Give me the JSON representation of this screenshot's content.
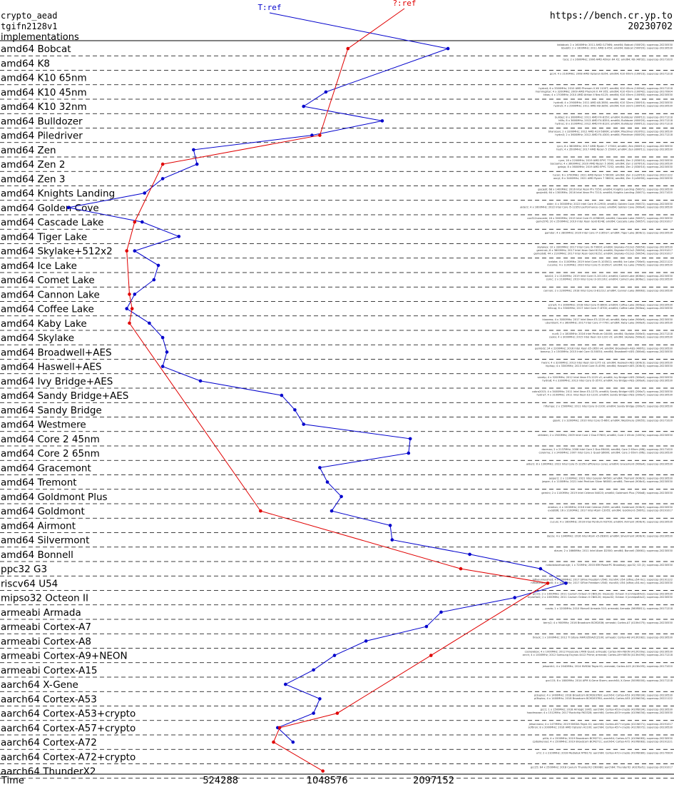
{
  "header": {
    "line1": "crypto_aead",
    "line2": "tgifn2128v1",
    "line3": "implementations",
    "url": "https://bench.cr.yp.to",
    "date": "20230702"
  },
  "colors": {
    "series_blue": "#0000cc",
    "series_red": "#e00000",
    "text": "#000000",
    "grid": "#000000"
  },
  "chart_data": {
    "type": "line",
    "title": "",
    "xlabel": "Time",
    "x_scale": "log2",
    "xlim": [
      125000,
      10000000
    ],
    "x_ticks": [
      524288,
      1048576,
      2097152
    ],
    "legend_position": "top-center",
    "series": [
      {
        "name": "T:ref",
        "points": [
          {
            "cat": "amd64 Bobcat",
            "x": 2300000
          },
          {
            "cat": "amd64 K10 45nm",
            "x": 1040000
          },
          {
            "cat": "amd64 K10 32nm",
            "x": 900000
          },
          {
            "cat": "amd64 Bulldozer",
            "x": 1500000
          },
          {
            "cat": "amd64 Piledriver",
            "x": 950000
          },
          {
            "cat": "amd64 Zen",
            "x": 440000
          },
          {
            "cat": "amd64 Zen 2",
            "x": 450000
          },
          {
            "cat": "amd64 Zen 3",
            "x": 360000
          },
          {
            "cat": "amd64 Knights Landing",
            "x": 320000
          },
          {
            "cat": "amd64 Golden Cove",
            "x": 195000
          },
          {
            "cat": "amd64 Cascade Lake",
            "x": 315000
          },
          {
            "cat": "amd64 Tiger Lake",
            "x": 400000
          },
          {
            "cat": "amd64 Skylake+512x2",
            "x": 300000
          },
          {
            "cat": "amd64 Ice Lake",
            "x": 350000
          },
          {
            "cat": "amd64 Comet Lake",
            "x": 340000
          },
          {
            "cat": "amd64 Cannon Lake",
            "x": 300000
          },
          {
            "cat": "amd64 Coffee Lake",
            "x": 285000
          },
          {
            "cat": "amd64 Kaby Lake",
            "x": 330000
          },
          {
            "cat": "amd64 Skylake",
            "x": 360000
          },
          {
            "cat": "amd64 Broadwell+AES",
            "x": 370000
          },
          {
            "cat": "amd64 Haswell+AES",
            "x": 360000
          },
          {
            "cat": "amd64 Ivy Bridge+AES",
            "x": 460000
          },
          {
            "cat": "amd64 Sandy Bridge+AES",
            "x": 780000
          },
          {
            "cat": "amd64 Sandy Bridge",
            "x": 850000
          },
          {
            "cat": "amd64 Westmere",
            "x": 900000
          },
          {
            "cat": "amd64 Core 2 45nm",
            "x": 1800000
          },
          {
            "cat": "amd64 Core 2 65nm",
            "x": 1780000
          },
          {
            "cat": "amd64 Gracemont",
            "x": 1000000
          },
          {
            "cat": "amd64 Tremont",
            "x": 1050000
          },
          {
            "cat": "amd64 Goldmont Plus",
            "x": 1150000
          },
          {
            "cat": "amd64 Goldmont",
            "x": 1080000
          },
          {
            "cat": "amd64 Airmont",
            "x": 1580000
          },
          {
            "cat": "amd64 Silvermont",
            "x": 1600000
          },
          {
            "cat": "amd64 Bonnell",
            "x": 2650000
          },
          {
            "cat": "ppc32 G3",
            "x": 4200000
          },
          {
            "cat": "riscv64 U54",
            "x": 4950000
          },
          {
            "cat": "mipso32 Octeon II",
            "x": 3550000
          },
          {
            "cat": "armeabi Armada",
            "x": 2200000
          },
          {
            "cat": "armeabi Cortex-A7",
            "x": 2000000
          },
          {
            "cat": "armeabi Cortex-A8",
            "x": 1350000
          },
          {
            "cat": "armeabi Cortex-A9+NEON",
            "x": 1100000
          },
          {
            "cat": "armeabi Cortex-A15",
            "x": 960000
          },
          {
            "cat": "aarch64 X-Gene",
            "x": 800000
          },
          {
            "cat": "aarch64 Cortex-A53",
            "x": 1000000
          },
          {
            "cat": "aarch64 Cortex-A53+crypto",
            "x": 960000
          },
          {
            "cat": "aarch64 Cortex-A57+crypto",
            "x": 760000
          },
          {
            "cat": "aarch64 Cortex-A72",
            "x": 840000
          }
        ]
      },
      {
        "name": "?:ref",
        "points": [
          {
            "cat": "amd64 Bobcat",
            "x": 1200000
          },
          {
            "cat": "amd64 Piledriver",
            "x": 1000000
          },
          {
            "cat": "amd64 Zen 2",
            "x": 360000
          },
          {
            "cat": "amd64 Cascade Lake",
            "x": 300000
          },
          {
            "cat": "amd64 Skylake+512x2",
            "x": 285000
          },
          {
            "cat": "amd64 Cannon Lake",
            "x": 290000
          },
          {
            "cat": "amd64 Coffee Lake",
            "x": 295000
          },
          {
            "cat": "amd64 Kaby Lake",
            "x": 290000
          },
          {
            "cat": "amd64 Goldmont",
            "x": 680000
          },
          {
            "cat": "ppc32 G3",
            "x": 2500000
          },
          {
            "cat": "riscv64 U54",
            "x": 4400000
          },
          {
            "cat": "armeabi Cortex-A9+NEON",
            "x": 2060000
          },
          {
            "cat": "aarch64 Cortex-A53+crypto",
            "x": 1120000
          },
          {
            "cat": "aarch64 Cortex-A57+crypto",
            "x": 770000
          },
          {
            "cat": "aarch64 Cortex-A72",
            "x": 740000
          },
          {
            "cat": "aarch64 ThunderX2",
            "x": 1020000
          }
        ]
      }
    ],
    "categories": [
      {
        "label": "amd64 Bobcat",
        "notes": [
          "bblobcat; 2 x 1600MHz; 2011 AMD G-T56N; amd64; Bobcat (500f20); supercop-20230530",
          "bbabt0; 2 x 1600MHz; 2011 AMD E-450; amd64; Bobcat (500f20); supercop-20230530"
        ]
      },
      {
        "label": "amd64 K8",
        "notes": [
          "toco; 2 x 2600MHz; 2006 AMD Athlon 64 X2; amd64; K8 (40f32); supercop-20171020"
        ]
      },
      {
        "label": "amd64 K10 65nm",
        "notes": [
          "gcc4; 4 x 2100MHz; 2008 AMD Opteron 8354; amd64; K10 65nm (100f23); supercop-20171218"
        ]
      },
      {
        "label": "amd64 K10 45nm",
        "notes": [
          "hydra4; 6 x 3300MHz; 2010 AMD Phenom II X6 1100T; amd64; K10 45nm (100fa0); supercop-20171218",
          "morningstar; 4 x 3200MHz; 2009 AMD Phenom II X4 955; amd64; K10 45nm (100f42); supercop-20170904",
          "kikos; 4 x 1700MHz; 2010 AMD Athlon II Neo K125; amd64; K10 45nm (100f63); supercop-20230530"
        ]
      },
      {
        "label": "amd64 K10 32nm",
        "notes": [
          "hydra6; 4 x 2900MHz; 2011 AMD A8-3850; amd64; K10 32nm (300f10); supercop-20230530",
          "hydra5; 4 x 2900MHz; 2011 AMD A8-3850; amd64; K10 32nm (300f10); supercop-20230530"
        ]
      },
      {
        "label": "amd64 Bulldozer",
        "notes": [
          "bulldez; 8 x 3600MHz; 2011 AMD FX-8150; amd64; Bulldozer (600f12); supercop-20171218",
          "h6fx; 8 x 3600MHz; 2013 AMD FX-8350; amd64; Bulldozer (600f20); supercop-20171218",
          "hydra1; 8 x 3100MHz; 2012 AMD FX-8120; amd64; Bulldozer (600f12); supercop-20171218"
        ]
      },
      {
        "label": "amd64 Piledriver",
        "notes": [
          "bhansoyx; 2 x 3300MHz; 2012 AMD A10-5800K; amd64; Piledriver (610f01); supercop-20230530",
          "hydra3; 2 x 3600MHz; 2012 AMD FX-4300; amd64; Piledriver (600f20); supercop-20171218"
        ]
      },
      {
        "label": "amd64 Zen",
        "notes": [
          "rynn; 8 x 3600MHz; 2017 AMD Ryzen 7 1700X; amd64; Zen (800f11); supercop-20230530",
          "hash; 4 x 3500MHz; 2017 AMD Ryzen 5 1500X; amd64; Zen (800f11); supercop-20230530"
        ]
      },
      {
        "label": "amd64 Zen 2",
        "notes": [
          "ryze; 16 x 2200MHz; 2019 AMD EPYC 7702; amd64; Zen 2 (830f10); supercop-20230530",
          "bocsamo; 4 x 3600MHz; 2020 AMD Ryzen 5 3600; amd64; Zen 2 (870f10); supercop-20230530",
          "gatsjo; 8 x 3600MHz; 2019 AMD EPYC 7252; amd64; Zen 2 (830f10); supercop-20230530"
        ]
      },
      {
        "label": "amd64 Zen 3",
        "notes": [
          "tucon; 6 x 3700MHz; 2021 AMD Ryzen 5 5600X; amd64; Zen 3 (a20f10); supercop-20221122",
          "oxcyl; 8 x 3400MHz; 2021 AMD Ryzen 7 5800U; amd64; Zen 3 (a50f00); supercop-20230530"
        ]
      },
      {
        "label": "amd64 Knights Landing",
        "notes": [
          "gacjedi; 68 x 1400MHz; 2016 Intel Xeon Phi 7250; amd64; Knights Landing (50671); supercop-20230530",
          "gacjedi4; 64 x 1300MHz; 2016 Intel Xeon Phi 7210; amd64; Knights Landing (50671); supercop-20171020"
        ]
      },
      {
        "label": "amd64 Golden Cove",
        "notes": [
          "alder; 4 x 3000MHz; 2022 Intel Core i9-12900; amd64; Golden Cove (90672); supercop-20230530",
          "alder2; 4 x 1600MHz; 2022 Intel Core i5-1235U performance cores; amd64; Golden Cove (906a4); supercop-20230530"
        ]
      },
      {
        "label": "amd64 Cascade Lake",
        "notes": [
          "cox512cascade; 18 x 3000MHz; 2019 Intel Core i9-10980XE; amd64; Cascade Lake (50657); supercop-20230530",
          "gemo576; 20 x 2500MHz; 2019 Intel Xeon Gold 6248; amd64; Cascade Lake (50657); supercop-20191017"
        ]
      },
      {
        "label": "amd64 Tiger Lake",
        "notes": [
          "gamdor; 4 x 2800MHz; 2020 Intel Core i7-1165G7; amd64; Tiger Lake (806c1); supercop-20230530"
        ]
      },
      {
        "label": "amd64 Skylake+512x2",
        "notes": [
          "skylakex; 10 x 3300MHz; 2017 Intel Core i9-7900X; amd64; Skylake+512x2 (50654); supercop-20230530",
          "geminsk; 8 x 3600MHz; 2017 Intel Xeon Gold 6134; amd64; Skylake+512x2 (50654); supercop-20191017",
          "gemodx8; 44 x 2100MHz; 2017 Intel Xeon Gold 6152; amd64; Skylake+512x2 (50654); supercop-20191017"
        ]
      },
      {
        "label": "amd64 Ice Lake",
        "notes": [
          "icelake; 4 x 1100MHz; 2019 Intel Core i5-1035G1; amd64; Ice Lake (706e5); supercop-20221122",
          "cucamo; 4 x 1100MHz; 2020 Intel Core i5-1035G7; amd64; Ice Lake (706e5); supercop-20230530"
        ]
      },
      {
        "label": "amd64 Comet Lake",
        "notes": [
          "tobi10; 2 x 2100MHz; 2019 Intel Core i3-10110U; amd64; Comet Lake (806ec); supercop-20230530",
          "comc; 2 x 2100MHz; 2019 Intel Core i3-10110U; amd64; Comet Lake (806ec); supercop-20230530"
        ]
      },
      {
        "label": "amd64 Cannon Lake",
        "notes": [
          "cannon; 2 x 2200MHz; 2018 Intel Core i3-8121U; amd64; Cannon Lake (60663); supercop-20230530"
        ]
      },
      {
        "label": "amd64 Coffee Lake",
        "notes": [
          "p1ne5; 4 x 3000MHz; 2018 Intel Core i5-8600; amd64; Coffee Lake (906ea); supercop-20230530",
          "hiltcup; 6 x 3300MHz; 2017 Intel Core i7-8700; amd64; Coffee Lake (906ea); supercop-20230530"
        ]
      },
      {
        "label": "amd64 Kaby Lake",
        "notes": [
          "kizzamo; 4 x 3000MHz; 2017 Intel Xeon E3-1220 v6; amd64; Kaby Lake (906e9); supercop-20230530",
          "ubuntkont; 4 x 3600MHz; 2017 Intel Core i7-7700; amd64; Kaby Lake (906e9); supercop-20230530"
        ]
      },
      {
        "label": "amd64 Skylake",
        "notes": [
          "nuc6; 2 x 1800MHz; 2016 Intel Pentium G4400; amd64; Skylake (506e3); supercop-20171218",
          "caskx; 4 x 3000MHz; 2015 Intel Xeon E3-1220 v5; amd64; Skylake (506e3); supercop-20230530"
        ]
      },
      {
        "label": "amd64 Broadwell+AES",
        "notes": [
          "gembdz; 24 x 2200MHz; 2016 Intel Xeon E5-2650 v4; amd64; Broadwell+AES (406f1); supercop-20230530",
          "bwsrnp; 2 x 1500MHz; 2015 Intel Core i3-5005U; amd64; Broadwell+AES (306d4); supercop-20230530"
        ]
      },
      {
        "label": "amd64 Haswell+AES",
        "notes": [
          "hwsrv; 4 x 3200MHz; 2013 Intel Xeon E3-1275 v3; amd64; Haswell+AES (306c3); supercop-20230530",
          "hiphop; 4 x 3300MHz; 2013 Intel Core i5-4590; amd64; Haswell+AES (306c3); supercop-20230530"
        ]
      },
      {
        "label": "amd64 Ivy Bridge+AES",
        "notes": [
          "sandip; 4 x 3200MHz; 2012 Intel Xeon E3-1225 v2; amd64; Ivy Bridge+AES (306a9); supercop-20230530",
          "hydra8; 4 x 3300MHz; 2013 Intel Core i5-3570; amd64; Ivy Bridge+AES (306a9); supercop-20230530"
        ]
      },
      {
        "label": "amd64 Sandy Bridge+AES",
        "notes": [
          "cobra2015; 4 x 3400MHz; 2011 Intel Xeon E3-1275; amd64; Sandy Bridge+AES (206a7); supercop-20230530",
          "hydra7; 4 x 3100MHz; 2011 Intel Xeon E3-1220; amd64; Sandy Bridge+AES (206a7); supercop-20230530"
        ]
      },
      {
        "label": "amd64 Sandy Bridge",
        "notes": [
          "hflumpy; 2 x 1500MHz; 2011 Intel Core i3-2100; amd64; Sandy Bridge (206a7); supercop-20230530"
        ]
      },
      {
        "label": "amd64 Westmere",
        "notes": [
          "gijam; 2 x 3200MHz; 2010 Intel Core i5-660; amd64; Westmere (20655); supercop-20171020"
        ]
      },
      {
        "label": "amd64 Core 2 45nm",
        "notes": [
          "utilidem; 2 x 2500MHz; 2009 Intel Core 2 Duo E7600; amd64; Core 2 45nm (1067a); supercop-20230530"
        ]
      },
      {
        "label": "amd64 Core 2 65nm",
        "notes": [
          "dacman; 2 x 2137MHz; 2006 Intel Core 2 Duo E6400; amd64; Core 2 65nm (6f6); supercop-20171020",
          "corekma; 2 x 2400MHz; 2007 Intel Core 2 Quad Q6600; amd64; Core 2 65nm (6fb); supercop-20230530"
        ]
      },
      {
        "label": "amd64 Gracemont",
        "notes": [
          "alder2; 8 x 1300MHz; 2022 Intel Core i5-1235U efficiency cores; amd64; Gracemont (906a4); supercop-20230530"
        ]
      },
      {
        "label": "amd64 Tremont",
        "notes": [
          "jasper2; 2 x 1100MHz; 2021 Intel Celeron N4500; amd64; Tremont (906c0); supercop-20230530",
          "jasper; 4 x 1100MHz; 2021 Intel Pentium Silver N6000; amd64; Tremont (906c0); supercop-20230530"
        ]
      },
      {
        "label": "amd64 Goldmont Plus",
        "notes": [
          "gemini; 2 x 1100MHz; 2019 Intel Celeron N4020; amd64; Goldmont Plus (706a8); supercop-20230530"
        ]
      },
      {
        "label": "amd64 Goldmont",
        "notes": [
          "eredion; 4 x 1500MHz; 2016 Intel Celeron J3455; amd64; Goldmont (506c9); supercop-20230530",
          "evobt86; 16 x 2100MHz; 2017 Intel Atom C3955; amd64; Goldmont (506f1); supercop-20191017"
        ]
      },
      {
        "label": "amd64 Airmont",
        "notes": [
          "cucuis; 4 x 1600MHz; 2016 Intel Pentium N3700; amd64; Airmont (406c4); supercop-20230530"
        ]
      },
      {
        "label": "amd64 Silvermont",
        "notes": [
          "dazzy; 4 x 1340MHz; 2016 Intel Atom x5-Z8300; amd64; Silvermont (406c4); supercop-20230530"
        ]
      },
      {
        "label": "amd64 Bonnell",
        "notes": [
          "diaum; 2 x 1666MHz; 2011 Intel Atom D2500; amd64; Bonnell (30661); supercop-20230530"
        ]
      },
      {
        "label": "ppc32 G3",
        "notes": [
          "natodolovetuanaje; 1 x 720MHz; 2003 IBM PowerPC Broadway; ppc32; G3 (2); supercop-20230530"
        ]
      },
      {
        "label": "riscv64 U54",
        "notes": [
          "hifiveunleashed; 4 x 1000MHz; 2017 SiFive Freedom U540; riscv64; U54 (sifive,u54-mc); supercop-20191122",
          "hifiveunleashed0; 4 x 1000MHz; 2017 SiFive Freedom U540; riscv64; U54 (sifive,u54-mc); supercop-20230530"
        ]
      },
      {
        "label": "mipso32 Octeon II",
        "notes": [
          "gcc31; 2 x 1000MHz; 2011 Cavium Octeon II CN6120; mipso32; Octeon II (cnmips64v2); supercop-20230530",
          "erproflat2; 2 x 1000MHz; 2011 Cavium Octeon II CN6120; mipso32; Octeon II (cnmips64v2); supercop-20230530"
        ]
      },
      {
        "label": "armeabi Armada",
        "notes": [
          "cosdo; 1 x 1200MHz; 2010 Marvell Armada 510; armeabi; Armada (560f5811); supercop-20171218"
        ]
      },
      {
        "label": "armeabi Cortex-A7",
        "notes": [
          "berry2; 4 x 900MHz; 2016 Broadcom BCM2836; armeabi; Cortex-A7 (410fc075); supercop-20230530"
        ]
      },
      {
        "label": "armeabi Cortex-A8",
        "notes": [
          "tklack; 1 x 1000MHz; 2012 TI Sitara XAM3359AZCZ100; armeabi; Cortex-A8 (413fc082); supercop-20230530"
        ]
      },
      {
        "label": "armeabi Cortex-A9+NEON",
        "notes": [
          "cosnewbox; 4 x 1000MHz; 2012 Freescale i.MX6 Quad; armeabi; Cortex-A9+NEON (412fc09a); supercop-20230530",
          "arrch; 4 x 1000MHz; 2012 Samsung Exynos 4412 Prime; armeabi; Cortex-A9+NEON (413fc090); supercop-20171218"
        ]
      },
      {
        "label": "armeabi Cortex-A15",
        "notes": [
          "jetsontk1; 4 x 2040MHz; 2014 NVIDIA Tegra K1; armeabi; Cortex-A15 (413fc0f3); supercop-20171020"
        ]
      },
      {
        "label": "aarch64 X-Gene",
        "notes": [
          "gcc115; 8 x 1800MHz; 2014 APM X-Gene Storm; aarch64; X-Gene (500f0000); supercop-20171218"
        ]
      },
      {
        "label": "aarch64 Cortex-A53",
        "notes": [
          "pi3aplus; 4 x 1400MHz; 2018 Broadcom BCM2837B0; aarch64; Cortex-A53 (410fd034); supercop-20230530",
          "pi3bplus; 4 x 1400MHz; 2018 Broadcom BCM2837B0; aarch64; Cortex-A53 (410fd034); supercop-20221122"
        ]
      },
      {
        "label": "aarch64 Cortex-A53+crypto",
        "notes": [
          "gcc1; 1 x 1500MHz; 2018 Amlogic S905; aarch64; Cortex-A53+crypto (410fd034); supercop-20230530",
          "hoodmoose; 4 x 1512MHz; 2017 Rockchip RK3328; aarch64; Cortex-A53+crypto (410fd034); supercop-20230530"
        ]
      },
      {
        "label": "aarch64 Cortex-A57+crypto",
        "notes": [
          "jetsonnano; 4 x 1479MHz; 2019 NVIDIA Tegra X1; aarch64; Cortex-A57+crypto (411fd071); supercop-20191017",
          "softiron; 8 x 2000MHz; 2016 AMD Opteron A1100; aarch64; Cortex-A57+crypto (411fd072); supercop-20230530"
        ]
      },
      {
        "label": "aarch64 Cortex-A72",
        "notes": [
          "pi4b; 4 x 1500MHz; 2019 Broadcom BCM2711; aarch64; Cortex-A72 (410fd083); supercop-20230530",
          "cpibolkensel; 4 x 1500MHz; 2019 Broadcom BCM2711; aarch64; Cortex-A72 (410fd083); supercop-20191221"
        ]
      },
      {
        "label": "aarch64 Cortex-A72+crypto",
        "notes": [
          "a72; 2 x 2100MHz; 2016 Mediatek MT8173; aarch64; Cortex-A72+crypto (410fd080); supercop-20170904"
        ]
      },
      {
        "label": "aarch64 ThunderX2",
        "notes": [
          "gcc25; 64 x 2500MHz; 2018 Cavium ThunderX2 CN9980; aarch64; ThunderX2 (431f0af1); supercop-20191017"
        ]
      }
    ]
  }
}
